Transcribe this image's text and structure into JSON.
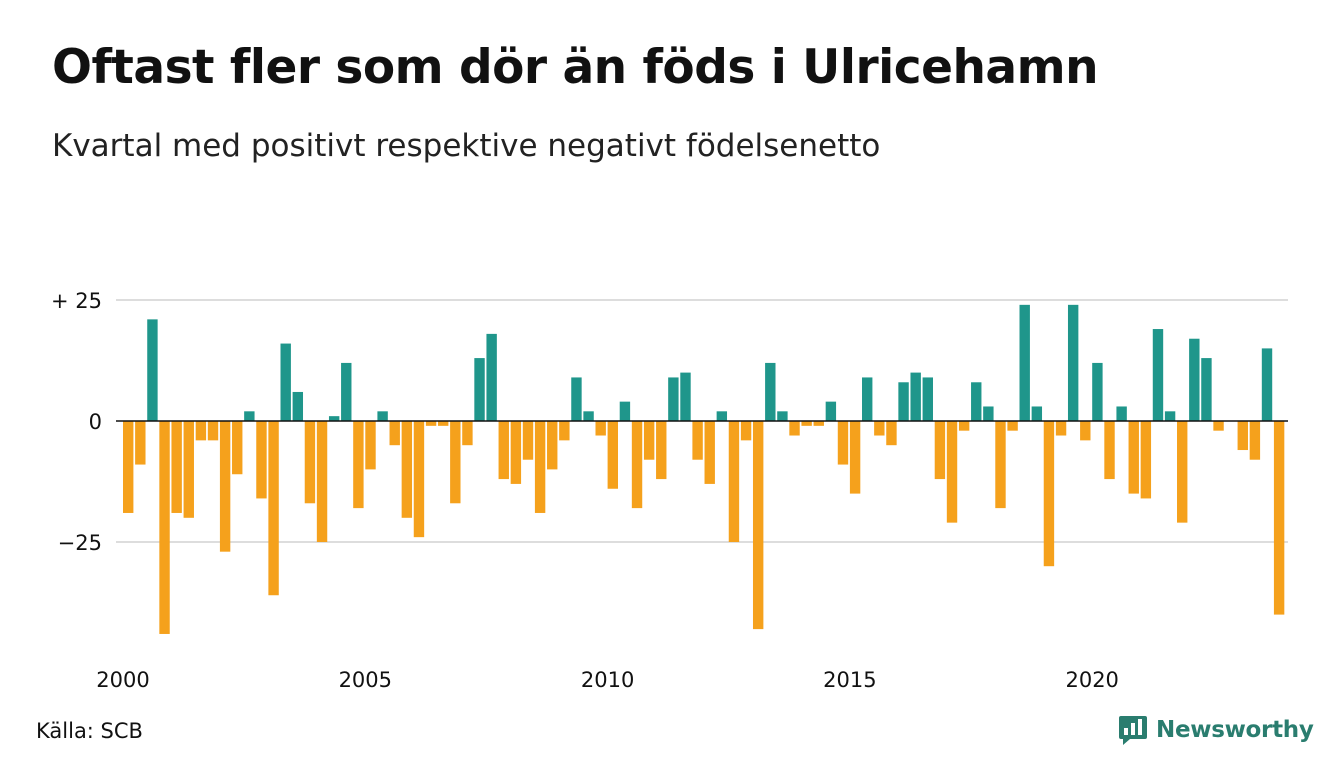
{
  "header": {
    "title": "Oftast fler som dör än föds i Ulricehamn",
    "subtitle": "Kvartal med positivt respektive negativt födelsenetto"
  },
  "footer": {
    "source": "Källa: SCB",
    "brand": "Newsworthy"
  },
  "colors": {
    "positive": "#1f968b",
    "negative": "#f5a11c",
    "grid": "#dddddd",
    "axis": "#111111",
    "brand": "#2a7d6f"
  },
  "icons": {
    "brand_logo": "newsworthy-chart-icon"
  },
  "chart_data": {
    "type": "bar",
    "x_start": "2000 Q1",
    "x_ticks": [
      "2000",
      "2005",
      "2010",
      "2015",
      "2020"
    ],
    "y_ticks": [
      {
        "value": 25,
        "label": "+ 25"
      },
      {
        "value": 0,
        "label": "0"
      },
      {
        "value": -25,
        "label": "−25"
      }
    ],
    "ylim": [
      -44,
      26
    ],
    "grid": true,
    "values": [
      -19,
      -9,
      21,
      -44,
      -19,
      -20,
      -4,
      -4,
      -27,
      -11,
      2,
      -16,
      -36,
      16,
      6,
      -17,
      -25,
      1,
      12,
      -18,
      -10,
      2,
      -5,
      -20,
      -24,
      -1,
      -1,
      -17,
      -5,
      13,
      18,
      -12,
      -13,
      -8,
      -19,
      -10,
      -4,
      9,
      2,
      -3,
      -14,
      4,
      -18,
      -8,
      -12,
      9,
      10,
      -8,
      -13,
      2,
      -25,
      -4,
      -43,
      12,
      2,
      -3,
      -1,
      -1,
      4,
      -9,
      -15,
      9,
      -3,
      -5,
      8,
      10,
      9,
      -12,
      -21,
      -2,
      8,
      3,
      -18,
      -2,
      24,
      3,
      -30,
      -3,
      24,
      -4,
      12,
      -12,
      3,
      -15,
      -16,
      19,
      2,
      -21,
      17,
      13,
      -2,
      0,
      -6,
      -8,
      15,
      -40
    ]
  }
}
